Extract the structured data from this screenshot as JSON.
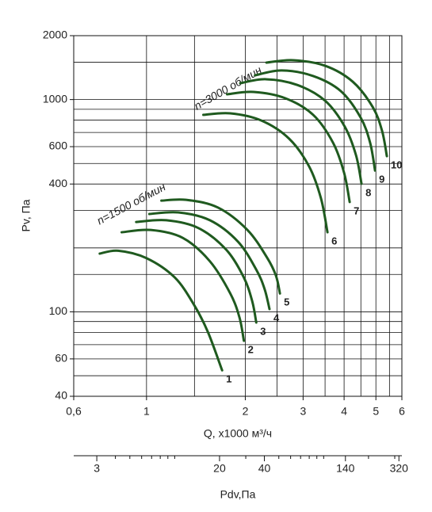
{
  "chart_data": {
    "type": "line",
    "x_label": "Q, x1000 м³/ч",
    "y_label": "Pv, Па",
    "x2_label": "Pdv,Па",
    "annotations": [
      "n=1500 об/мин",
      "n=3000 об/мин"
    ],
    "log_x": true,
    "log_y": true,
    "color": "#1f5a1f",
    "xlim": [
      0.6,
      6
    ],
    "ylim": [
      40,
      2000
    ],
    "xticks": [
      {
        "value": 0.6,
        "label": "0,6"
      },
      1,
      2,
      3,
      4,
      5,
      6
    ],
    "yticks": [
      2000,
      1000,
      600,
      400,
      100,
      60,
      40
    ],
    "xgrid": [
      1,
      1.4,
      2,
      2.5,
      3,
      3.5,
      4,
      4.5,
      5,
      5.5
    ],
    "ygrid": [
      1500,
      1000,
      900,
      800,
      700,
      600,
      500,
      400,
      300,
      200,
      150,
      100,
      90,
      80,
      70,
      60,
      50
    ],
    "x2lim": [
      2.1,
      335
    ],
    "x2ticks": [
      3,
      20,
      40,
      140,
      320
    ],
    "x2minor": [
      4,
      5,
      6,
      7,
      8,
      9,
      10,
      30,
      50,
      60,
      70,
      80,
      90,
      100,
      200,
      300
    ],
    "series": [
      {
        "name": "1",
        "x": [
          0.72,
          0.82,
          1.0,
          1.22,
          1.4,
          1.54,
          1.7
        ],
        "values": [
          188,
          194,
          179,
          145,
          107,
          80,
          53
        ]
      },
      {
        "name": "2",
        "x": [
          0.84,
          1.03,
          1.29,
          1.56,
          1.8,
          1.92,
          1.98
        ],
        "values": [
          237,
          243,
          223,
          173,
          122,
          94,
          73
        ]
      },
      {
        "name": "3",
        "x": [
          0.93,
          1.15,
          1.44,
          1.75,
          1.98,
          2.1,
          2.16
        ],
        "values": [
          265,
          270,
          248,
          196,
          145,
          112,
          89
        ]
      },
      {
        "name": "4",
        "x": [
          1.02,
          1.25,
          1.56,
          1.9,
          2.16,
          2.29,
          2.37
        ],
        "values": [
          289,
          294,
          270,
          214,
          158,
          128,
          103
        ]
      },
      {
        "name": "5",
        "x": [
          1.11,
          1.32,
          1.65,
          2.03,
          2.33,
          2.48,
          2.55
        ],
        "values": [
          334,
          337,
          310,
          243,
          180,
          148,
          122
        ]
      },
      {
        "name": "6",
        "x": [
          1.49,
          1.8,
          2.24,
          2.72,
          3.13,
          3.4,
          3.56
        ],
        "values": [
          847,
          861,
          796,
          654,
          484,
          343,
          237
        ]
      },
      {
        "name": "7",
        "x": [
          1.76,
          2.12,
          2.65,
          3.22,
          3.7,
          4.0,
          4.16
        ],
        "values": [
          1059,
          1086,
          1014,
          847,
          627,
          452,
          329
        ]
      },
      {
        "name": "8",
        "x": [
          1.93,
          2.31,
          2.88,
          3.5,
          4.02,
          4.35,
          4.52
        ],
        "values": [
          1194,
          1247,
          1172,
          988,
          745,
          546,
          401
        ]
      },
      {
        "name": "9",
        "x": [
          2.14,
          2.58,
          3.22,
          3.91,
          4.49,
          4.8,
          4.97
        ],
        "values": [
          1300,
          1371,
          1291,
          1096,
          824,
          627,
          463
        ]
      },
      {
        "name": "10",
        "x": [
          2.32,
          2.8,
          3.5,
          4.25,
          4.89,
          5.22,
          5.4
        ],
        "values": [
          1493,
          1532,
          1443,
          1214,
          922,
          713,
          541
        ]
      }
    ]
  }
}
